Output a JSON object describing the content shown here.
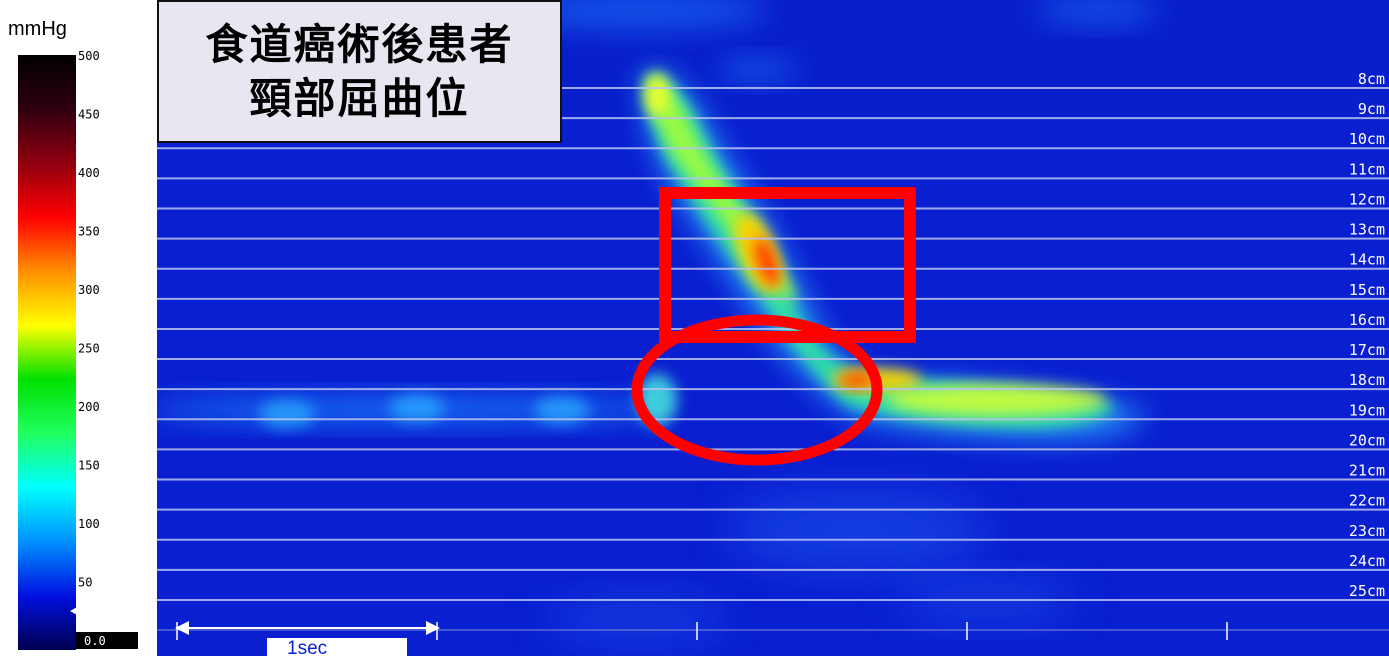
{
  "chart_data": {
    "type": "heatmap",
    "title": [
      "食道癌術後患者",
      "頸部屈曲位"
    ],
    "colorbar": {
      "unit": "mmHg",
      "ticks": [
        "500",
        "450",
        "400",
        "350",
        "300",
        "250",
        "200",
        "150",
        "100",
        "50",
        "0.0"
      ],
      "range": [
        0,
        500
      ],
      "colors": [
        "#000050",
        "#0010e0",
        "#0090ff",
        "#00ffff",
        "#20ff60",
        "#00e000",
        "#ffff00",
        "#ff9000",
        "#ff0000",
        "#900010",
        "#300010",
        "#000000"
      ]
    },
    "y_labels": [
      "8cm",
      "9cm",
      "10cm",
      "11cm",
      "12cm",
      "13cm",
      "14cm",
      "15cm",
      "16cm",
      "17cm",
      "18cm",
      "19cm",
      "20cm",
      "21cm",
      "22cm",
      "23cm",
      "24cm",
      "25cm"
    ],
    "time_scale_label": "1sec",
    "annotations": [
      {
        "shape": "rectangle",
        "color": "#ff0000"
      },
      {
        "shape": "ellipse",
        "color": "#ff0000"
      }
    ]
  }
}
